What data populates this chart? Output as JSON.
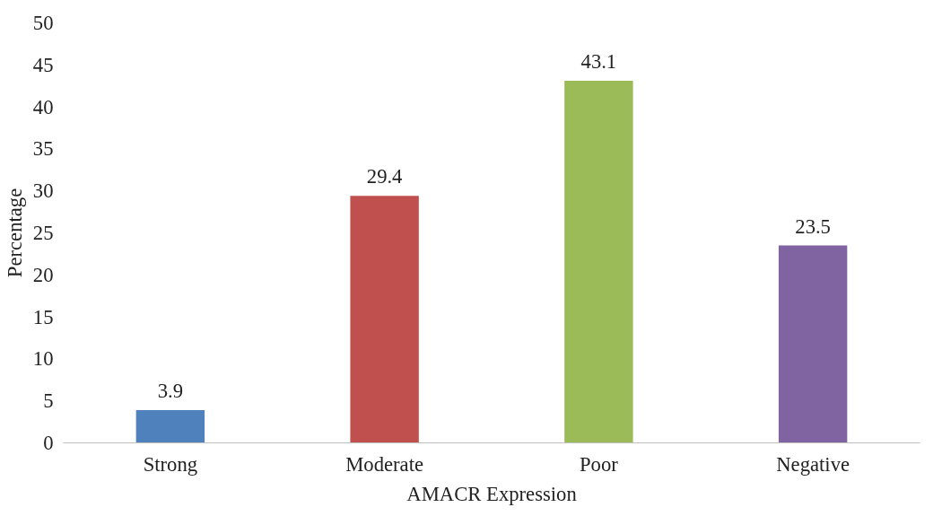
{
  "chart_data": {
    "type": "bar",
    "xlabel": "AMACR Expression",
    "ylabel": "Percentage",
    "categories": [
      "Strong",
      "Moderate",
      "Poor",
      "Negative"
    ],
    "values": [
      3.9,
      29.4,
      43.1,
      23.5
    ],
    "colors": [
      "#4f81bd",
      "#c0504d",
      "#9bbb59",
      "#8064a2"
    ],
    "ylim": [
      0,
      50
    ],
    "yticks": [
      0,
      5,
      10,
      15,
      20,
      25,
      30,
      35,
      40,
      45,
      50
    ],
    "data_labels": true,
    "grid": false
  }
}
